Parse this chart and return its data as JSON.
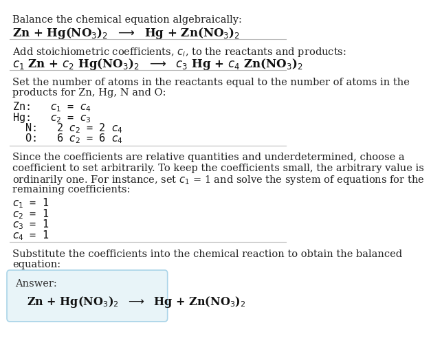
{
  "bg_color": "#ffffff",
  "divider_color": "#bbbbbb",
  "answer_box_color": "#e8f4f8",
  "answer_box_border": "#aad4e8",
  "title_line1": "Balance the chemical equation algebraically:",
  "title_line2": "Zn + Hg(NO$_3$)$_2$  $\\longrightarrow$  Hg + Zn(NO$_3$)$_2$",
  "sec2_line1": "Add stoichiometric coefficients, $c_i$, to the reactants and products:",
  "sec2_line2": "$c_1$ Zn + $c_2$ Hg(NO$_3$)$_2$  $\\longrightarrow$  $c_3$ Hg + $c_4$ Zn(NO$_3$)$_2$",
  "sec3_line1": "Set the number of atoms in the reactants equal to the number of atoms in the",
  "sec3_line2": "products for Zn, Hg, N and O:",
  "sec3_atoms": [
    "Zn:   $c_1$ = $c_4$",
    "Hg:   $c_2$ = $c_3$",
    "  N:   2 $c_2$ = 2 $c_4$",
    "  O:   6 $c_2$ = 6 $c_4$"
  ],
  "sec4_line1": "Since the coefficients are relative quantities and underdetermined, choose a",
  "sec4_line2": "coefficient to set arbitrarily. To keep the coefficients small, the arbitrary value is",
  "sec4_line3": "ordinarily one. For instance, set $c_1$ = 1 and solve the system of equations for the",
  "sec4_line4": "remaining coefficients:",
  "sec4_coeffs": [
    "$c_1$ = 1",
    "$c_2$ = 1",
    "$c_3$ = 1",
    "$c_4$ = 1"
  ],
  "sec5_line1": "Substitute the coefficients into the chemical reaction to obtain the balanced",
  "sec5_line2": "equation:",
  "answer_label": "Answer:",
  "answer_eq": "Zn + Hg(NO$_3$)$_2$  $\\longrightarrow$  Hg + Zn(NO$_3$)$_2$"
}
